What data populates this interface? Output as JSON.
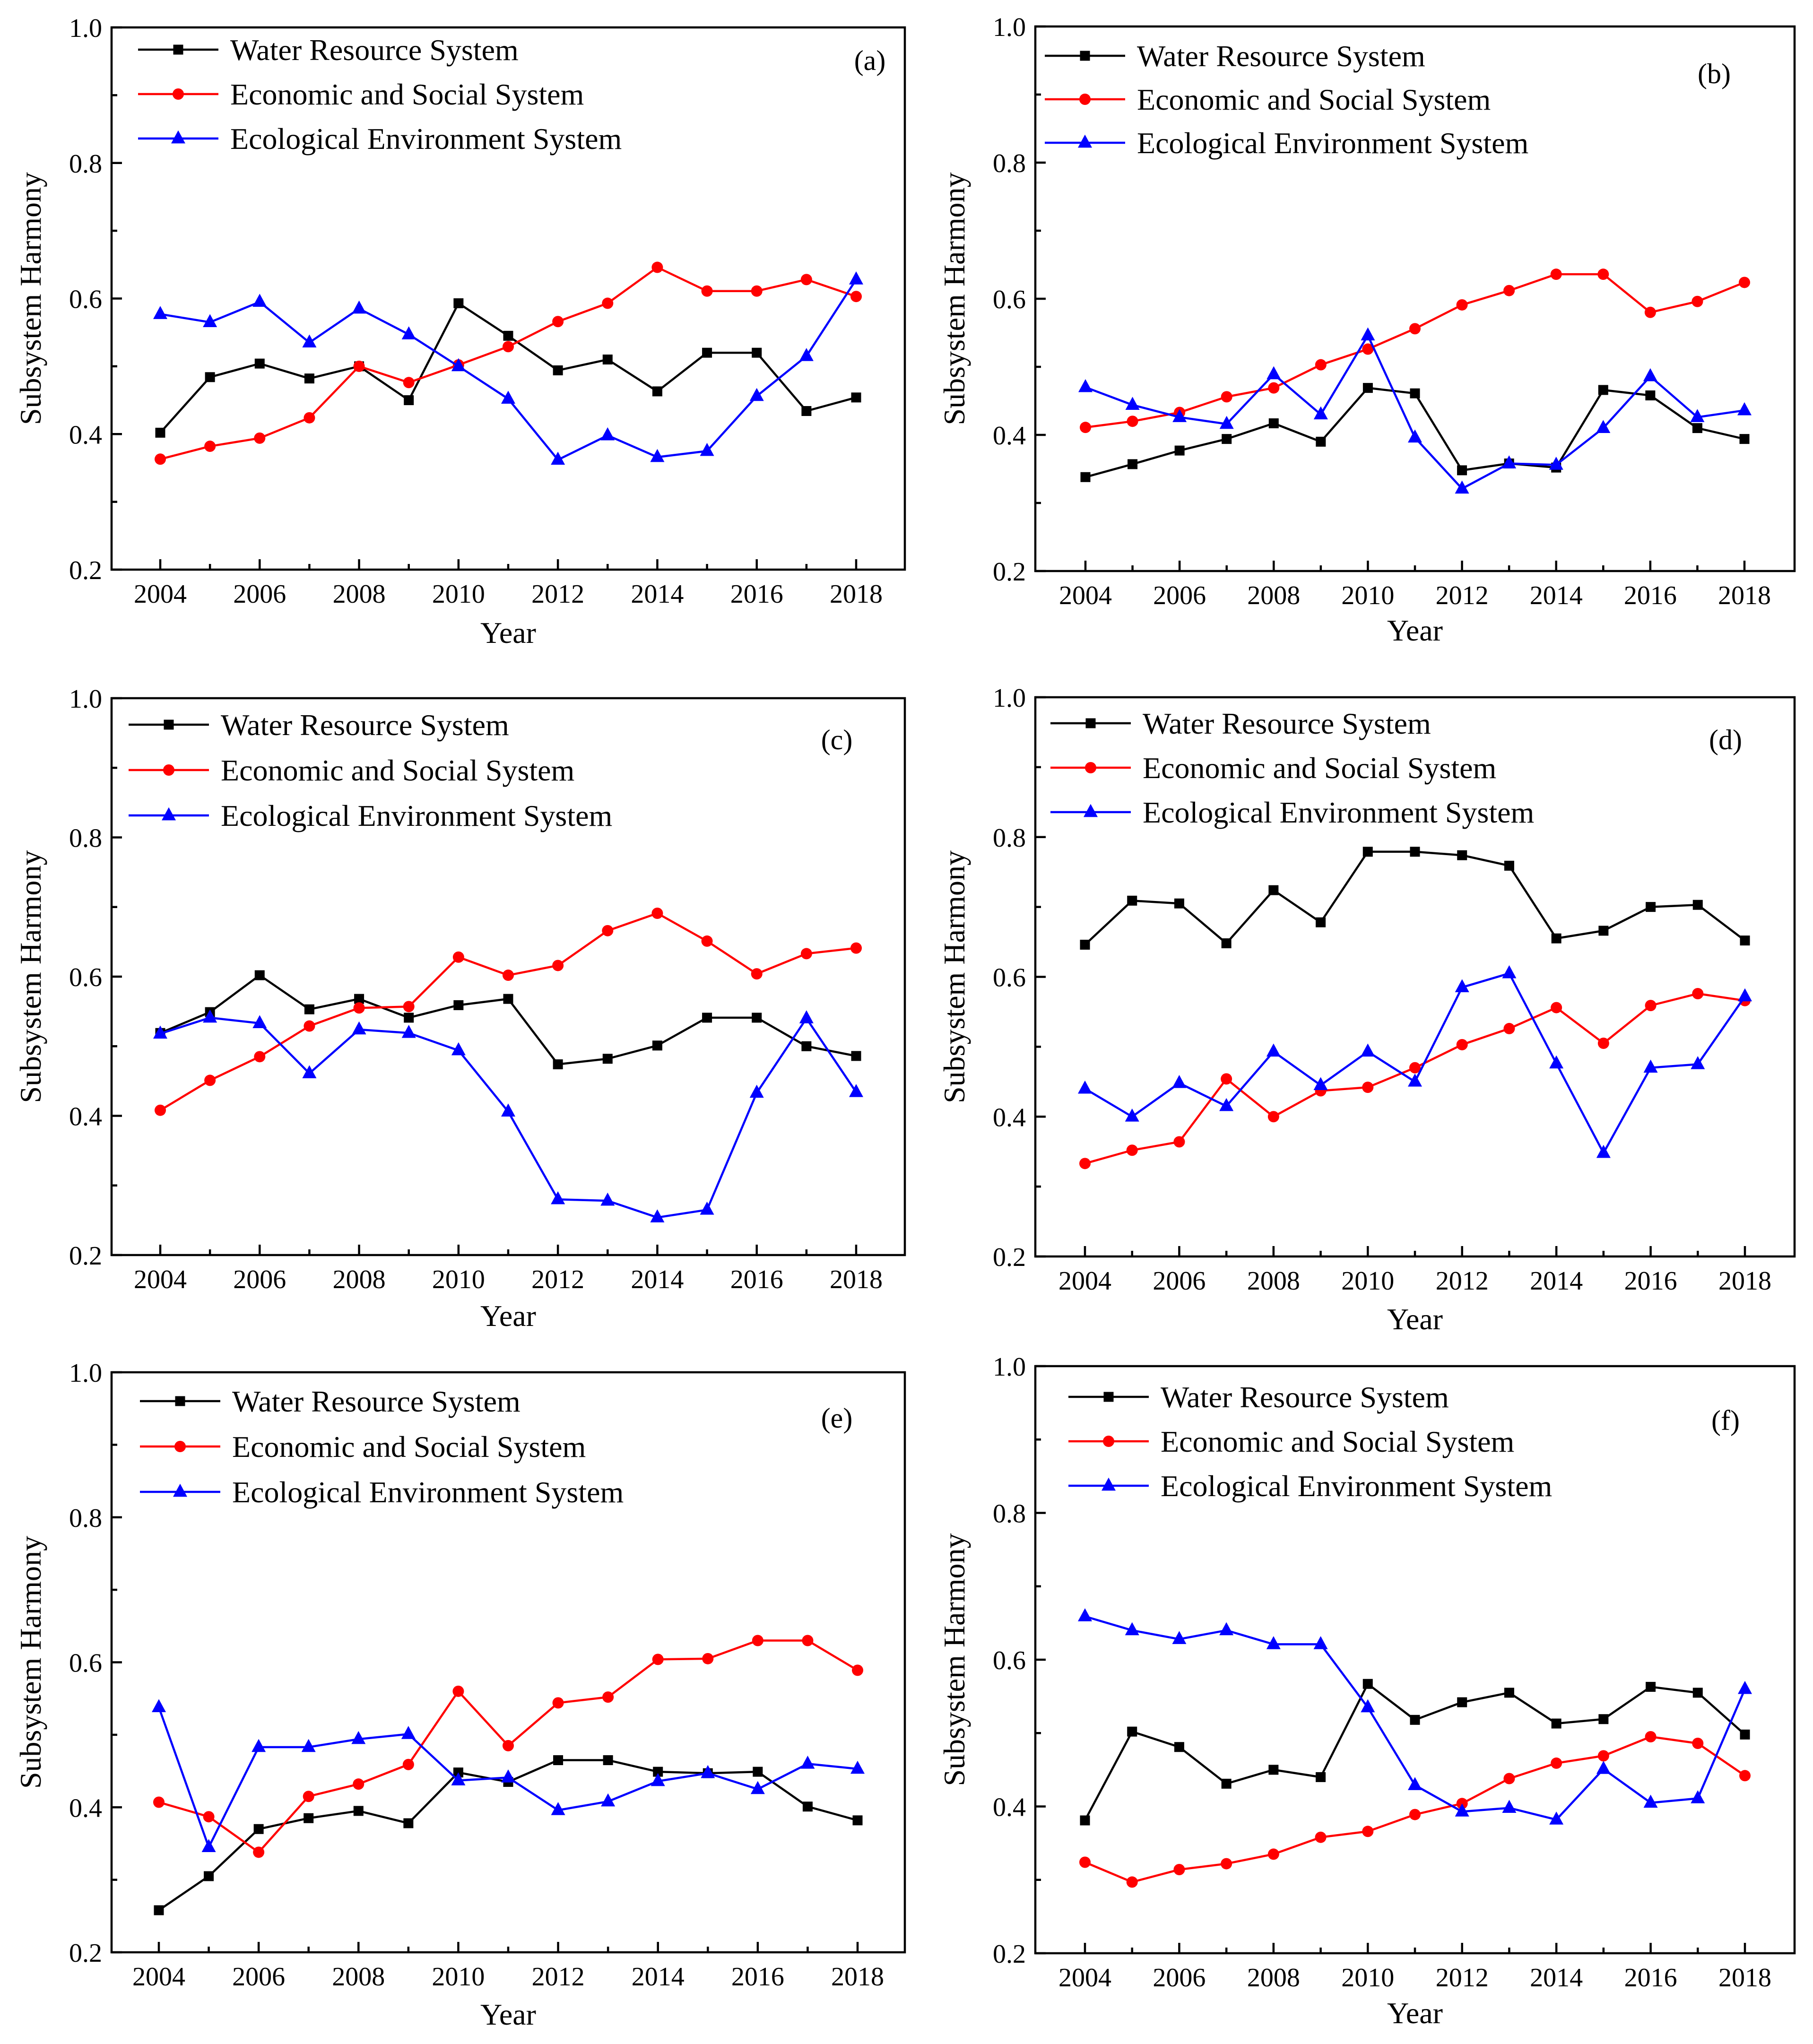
{
  "legend_labels": [
    "Water Resource System",
    "Economic and Social System",
    "Ecological Environment System"
  ],
  "series_colors": [
    "#000000",
    "#ff0000",
    "#0000ff"
  ],
  "series_markers": [
    "square",
    "circle",
    "triangle"
  ],
  "chart_data": [
    {
      "type": "line",
      "panel_label": "(a)",
      "xlabel": "Year",
      "ylabel": "Subsystem Harmony",
      "x": [
        2004,
        2005,
        2006,
        2007,
        2008,
        2009,
        2010,
        2011,
        2012,
        2013,
        2014,
        2015,
        2016,
        2017,
        2018
      ],
      "xticks": [
        2004,
        2006,
        2008,
        2010,
        2012,
        2014,
        2016,
        2018
      ],
      "xtick_labels": [
        "2004",
        "2006",
        "2008",
        "2010",
        "2012",
        "2014",
        "2016",
        "2018"
      ],
      "ylim": [
        0.2,
        1.0
      ],
      "yticks": [
        0.2,
        0.4,
        0.6,
        0.8,
        1.0
      ],
      "ytick_labels": [
        "0.2",
        "0.4",
        "0.6",
        "0.8",
        "1.0"
      ],
      "grid": false,
      "legend_position": "top-left",
      "series": [
        {
          "name": "Water Resource System",
          "values": [
            0.402,
            0.484,
            0.504,
            0.482,
            0.5,
            0.45,
            0.593,
            0.545,
            0.494,
            0.51,
            0.463,
            0.52,
            0.52,
            0.434,
            0.454
          ]
        },
        {
          "name": "Economic and Social System",
          "values": [
            0.363,
            0.382,
            0.394,
            0.424,
            0.5,
            0.476,
            0.502,
            0.529,
            0.566,
            0.593,
            0.646,
            0.611,
            0.611,
            0.628,
            0.603
          ]
        },
        {
          "name": "Ecological Environment System",
          "values": [
            0.577,
            0.565,
            0.595,
            0.535,
            0.585,
            0.547,
            0.5,
            0.452,
            0.362,
            0.398,
            0.366,
            0.375,
            0.456,
            0.515,
            0.628
          ]
        }
      ]
    },
    {
      "type": "line",
      "panel_label": "(b)",
      "xlabel": "Year",
      "ylabel": "Subsystem Harmony",
      "x": [
        2004,
        2005,
        2006,
        2007,
        2008,
        2009,
        2010,
        2011,
        2012,
        2013,
        2014,
        2015,
        2016,
        2017,
        2018
      ],
      "xticks": [
        2004,
        2006,
        2008,
        2010,
        2012,
        2014,
        2016,
        2018
      ],
      "xtick_labels": [
        "2004",
        "2006",
        "2008",
        "2010",
        "2012",
        "2014",
        "2016",
        "2018"
      ],
      "ylim": [
        0.2,
        1.0
      ],
      "yticks": [
        0.2,
        0.4,
        0.6,
        0.8,
        1.0
      ],
      "ytick_labels": [
        "0.2",
        "0.4",
        "0.6",
        "0.8",
        "1.0"
      ],
      "grid": false,
      "legend_position": "top-left",
      "series": [
        {
          "name": "Water Resource System",
          "values": [
            0.338,
            0.357,
            0.377,
            0.394,
            0.417,
            0.39,
            0.469,
            0.461,
            0.348,
            0.358,
            0.352,
            0.466,
            0.458,
            0.41,
            0.394
          ]
        },
        {
          "name": "Economic and Social System",
          "values": [
            0.411,
            0.42,
            0.433,
            0.456,
            0.469,
            0.503,
            0.526,
            0.556,
            0.591,
            0.612,
            0.636,
            0.636,
            0.58,
            0.596,
            0.624
          ]
        },
        {
          "name": "Ecological Environment System",
          "values": [
            0.47,
            0.444,
            0.426,
            0.416,
            0.489,
            0.43,
            0.546,
            0.396,
            0.321,
            0.358,
            0.356,
            0.41,
            0.486,
            0.426,
            0.436
          ]
        }
      ]
    },
    {
      "type": "line",
      "panel_label": "(c)",
      "xlabel": "Year",
      "ylabel": "Subsystem Harmony",
      "x": [
        2004,
        2005,
        2006,
        2007,
        2008,
        2009,
        2010,
        2011,
        2012,
        2013,
        2014,
        2015,
        2016,
        2017,
        2018
      ],
      "xticks": [
        2004,
        2006,
        2008,
        2010,
        2012,
        2014,
        2016,
        2018
      ],
      "xtick_labels": [
        "2004",
        "2006",
        "2008",
        "2010",
        "2012",
        "2014",
        "2016",
        "2018"
      ],
      "ylim": [
        0.2,
        1.0
      ],
      "yticks": [
        0.2,
        0.4,
        0.6,
        0.8,
        1.0
      ],
      "ytick_labels": [
        "0.2",
        "0.4",
        "0.6",
        "0.8",
        "1.0"
      ],
      "grid": false,
      "legend_position": "top-left",
      "series": [
        {
          "name": "Water Resource System",
          "values": [
            0.519,
            0.549,
            0.602,
            0.553,
            0.568,
            0.541,
            0.559,
            0.568,
            0.474,
            0.482,
            0.501,
            0.541,
            0.541,
            0.5,
            0.486
          ]
        },
        {
          "name": "Economic and Social System",
          "values": [
            0.408,
            0.451,
            0.485,
            0.529,
            0.555,
            0.557,
            0.628,
            0.602,
            0.616,
            0.666,
            0.691,
            0.651,
            0.604,
            0.633,
            0.641
          ]
        },
        {
          "name": "Ecological Environment System",
          "values": [
            0.518,
            0.541,
            0.533,
            0.461,
            0.524,
            0.519,
            0.494,
            0.406,
            0.28,
            0.278,
            0.254,
            0.265,
            0.433,
            0.54,
            0.434
          ]
        }
      ]
    },
    {
      "type": "line",
      "panel_label": "(d)",
      "xlabel": "Year",
      "ylabel": "Subsystem Harmony",
      "x": [
        2004,
        2005,
        2006,
        2007,
        2008,
        2009,
        2010,
        2011,
        2012,
        2013,
        2014,
        2015,
        2016,
        2017,
        2018
      ],
      "xticks": [
        2004,
        2006,
        2008,
        2010,
        2012,
        2014,
        2016,
        2018
      ],
      "xtick_labels": [
        "2004",
        "2006",
        "2008",
        "2010",
        "2012",
        "2014",
        "2016",
        "2018"
      ],
      "ylim": [
        0.2,
        1.0
      ],
      "yticks": [
        0.2,
        0.4,
        0.6,
        0.8,
        1.0
      ],
      "ytick_labels": [
        "0.2",
        "0.4",
        "0.6",
        "0.8",
        "1.0"
      ],
      "grid": false,
      "legend_position": "top-left",
      "series": [
        {
          "name": "Water Resource System",
          "values": [
            0.646,
            0.709,
            0.705,
            0.648,
            0.724,
            0.678,
            0.779,
            0.779,
            0.774,
            0.759,
            0.655,
            0.666,
            0.7,
            0.703,
            0.652
          ]
        },
        {
          "name": "Economic and Social System",
          "values": [
            0.333,
            0.352,
            0.364,
            0.454,
            0.4,
            0.437,
            0.442,
            0.47,
            0.503,
            0.526,
            0.556,
            0.505,
            0.559,
            0.576,
            0.566
          ]
        },
        {
          "name": "Ecological Environment System",
          "values": [
            0.44,
            0.4,
            0.448,
            0.415,
            0.493,
            0.445,
            0.493,
            0.45,
            0.585,
            0.605,
            0.476,
            0.348,
            0.47,
            0.475,
            0.572
          ]
        }
      ]
    },
    {
      "type": "line",
      "panel_label": "(e)",
      "xlabel": "Year",
      "ylabel": "Subsystem Harmony",
      "x": [
        2004,
        2005,
        2006,
        2007,
        2008,
        2009,
        2010,
        2011,
        2012,
        2013,
        2014,
        2015,
        2016,
        2017,
        2018
      ],
      "xticks": [
        2004,
        2006,
        2008,
        2010,
        2012,
        2014,
        2016,
        2018
      ],
      "xtick_labels": [
        "2004",
        "2006",
        "2008",
        "2010",
        "2012",
        "2014",
        "2016",
        "2018"
      ],
      "ylim": [
        0.2,
        1.0
      ],
      "yticks": [
        0.2,
        0.4,
        0.6,
        0.8,
        1.0
      ],
      "ytick_labels": [
        "0.2",
        "0.4",
        "0.6",
        "0.8",
        "1.0"
      ],
      "grid": false,
      "legend_position": "top-left",
      "series": [
        {
          "name": "Water Resource System",
          "values": [
            0.258,
            0.305,
            0.37,
            0.385,
            0.395,
            0.378,
            0.448,
            0.435,
            0.465,
            0.465,
            0.449,
            0.447,
            0.449,
            0.401,
            0.382
          ]
        },
        {
          "name": "Economic and Social System",
          "values": [
            0.407,
            0.387,
            0.338,
            0.415,
            0.432,
            0.459,
            0.56,
            0.485,
            0.544,
            0.552,
            0.604,
            0.605,
            0.63,
            0.63,
            0.589
          ]
        },
        {
          "name": "Ecological Environment System",
          "values": [
            0.538,
            0.345,
            0.483,
            0.483,
            0.494,
            0.501,
            0.437,
            0.441,
            0.396,
            0.408,
            0.436,
            0.447,
            0.425,
            0.46,
            0.453
          ]
        }
      ]
    },
    {
      "type": "line",
      "panel_label": "(f)",
      "xlabel": "Year",
      "ylabel": "Subsystem Harmony",
      "x": [
        2004,
        2005,
        2006,
        2007,
        2008,
        2009,
        2010,
        2011,
        2012,
        2013,
        2014,
        2015,
        2016,
        2017,
        2018
      ],
      "xticks": [
        2004,
        2006,
        2008,
        2010,
        2012,
        2014,
        2016,
        2018
      ],
      "xtick_labels": [
        "2004",
        "2006",
        "2008",
        "2010",
        "2012",
        "2014",
        "2016",
        "2018"
      ],
      "ylim": [
        0.2,
        1.0
      ],
      "yticks": [
        0.2,
        0.4,
        0.6,
        0.8,
        1.0
      ],
      "ytick_labels": [
        "0.2",
        "0.4",
        "0.6",
        "0.8",
        "1.0"
      ],
      "grid": false,
      "legend_position": "top-left",
      "series": [
        {
          "name": "Water Resource System",
          "values": [
            0.381,
            0.502,
            0.481,
            0.431,
            0.45,
            0.44,
            0.567,
            0.518,
            0.542,
            0.555,
            0.513,
            0.519,
            0.563,
            0.555,
            0.498
          ]
        },
        {
          "name": "Economic and Social System",
          "values": [
            0.324,
            0.297,
            0.314,
            0.322,
            0.335,
            0.358,
            0.366,
            0.389,
            0.404,
            0.438,
            0.459,
            0.469,
            0.495,
            0.486,
            0.442
          ]
        },
        {
          "name": "Ecological Environment System",
          "values": [
            0.659,
            0.64,
            0.628,
            0.64,
            0.621,
            0.621,
            0.535,
            0.429,
            0.393,
            0.398,
            0.382,
            0.451,
            0.405,
            0.411,
            0.56
          ]
        }
      ]
    }
  ]
}
